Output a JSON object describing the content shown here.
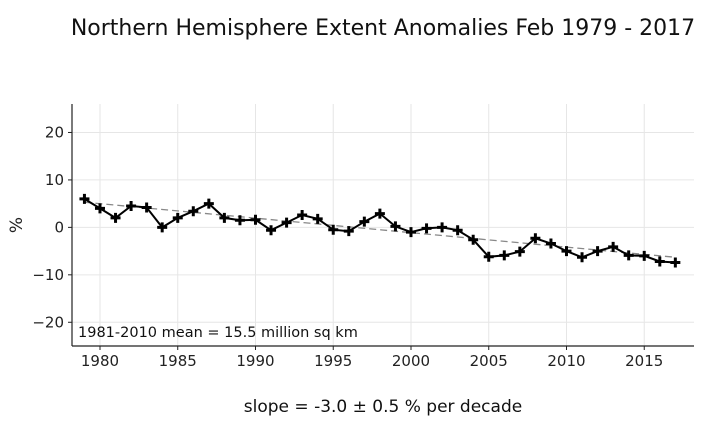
{
  "chart_data": {
    "type": "line",
    "title": "Northern Hemisphere Extent Anomalies Feb 1979 - 2017",
    "xlabel": "slope = -3.0 ± 0.5 % per decade",
    "ylabel": "%",
    "annotation": "1981-2010 mean = 15.5 million sq km",
    "xlim": [
      1978.2,
      2018.2
    ],
    "ylim": [
      -25,
      26
    ],
    "xticks": [
      1980,
      1985,
      1990,
      1995,
      2000,
      2005,
      2010,
      2015
    ],
    "yticks": [
      20,
      10,
      0,
      -10,
      -20
    ],
    "grid": true,
    "legend": "none",
    "series": [
      {
        "style": "line-with-plus-markers",
        "color": "#000000",
        "x": [
          1979,
          1980,
          1981,
          1982,
          1983,
          1984,
          1985,
          1986,
          1987,
          1988,
          1989,
          1990,
          1991,
          1992,
          1993,
          1994,
          1995,
          1996,
          1997,
          1998,
          1999,
          2000,
          2001,
          2002,
          2003,
          2004,
          2005,
          2006,
          2007,
          2008,
          2009,
          2010,
          2011,
          2012,
          2013,
          2014,
          2015,
          2016,
          2017
        ],
        "y": [
          6.0,
          4.0,
          2.0,
          4.5,
          4.2,
          0.0,
          2.0,
          3.4,
          5.0,
          2.0,
          1.5,
          1.6,
          -0.6,
          1.0,
          2.6,
          1.8,
          -0.5,
          -0.8,
          1.2,
          2.9,
          0.2,
          -1.0,
          -0.2,
          0.0,
          -0.6,
          -2.6,
          -6.2,
          -5.9,
          -5.1,
          -2.3,
          -3.4,
          -5.0,
          -6.3,
          -5.0,
          -4.1,
          -5.9,
          -6.0,
          -7.2,
          -7.4
        ]
      },
      {
        "style": "dashed-trend",
        "color": "#888888",
        "x": [
          1979,
          2017
        ],
        "y": [
          5.3,
          -6.3
        ]
      }
    ]
  }
}
